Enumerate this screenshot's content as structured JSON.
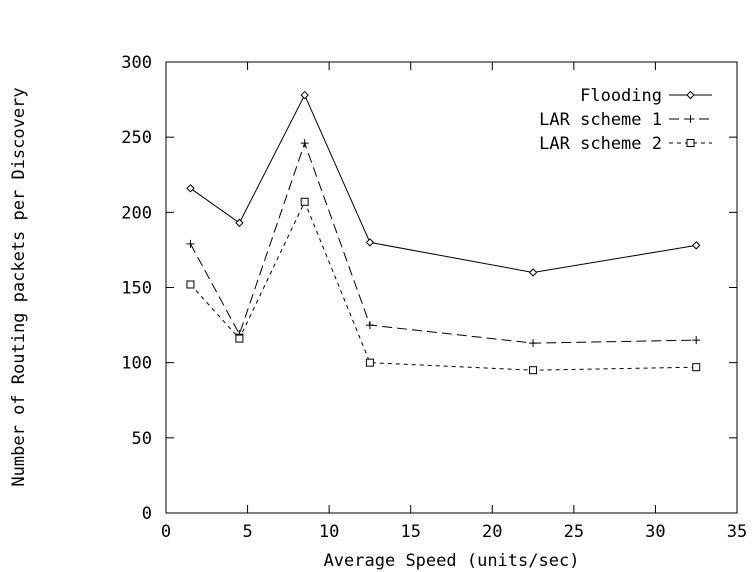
{
  "chart_data": {
    "type": "line",
    "title": "",
    "xlabel": "Average Speed (units/sec)",
    "ylabel": "Number of Routing packets per Discovery",
    "xlim": [
      0,
      35
    ],
    "ylim": [
      0,
      300
    ],
    "xticks": [
      0,
      5,
      10,
      15,
      20,
      25,
      30,
      35
    ],
    "yticks": [
      0,
      50,
      100,
      150,
      200,
      250,
      300
    ],
    "grid": false,
    "legend_position": "top-right",
    "x": [
      1.5,
      4.5,
      8.5,
      12.5,
      22.5,
      32.5
    ],
    "series": [
      {
        "name": "Flooding",
        "values": [
          216,
          193,
          278,
          180,
          160,
          178
        ],
        "marker": "diamond",
        "dash": "solid",
        "color": "#000000"
      },
      {
        "name": "LAR scheme 1",
        "values": [
          179,
          119,
          246,
          125,
          113,
          115
        ],
        "marker": "plus",
        "dash": "long-dash",
        "color": "#000000"
      },
      {
        "name": "LAR scheme 2",
        "values": [
          152,
          116,
          207,
          100,
          95,
          97
        ],
        "marker": "square",
        "dash": "short-dash",
        "color": "#000000"
      }
    ]
  }
}
